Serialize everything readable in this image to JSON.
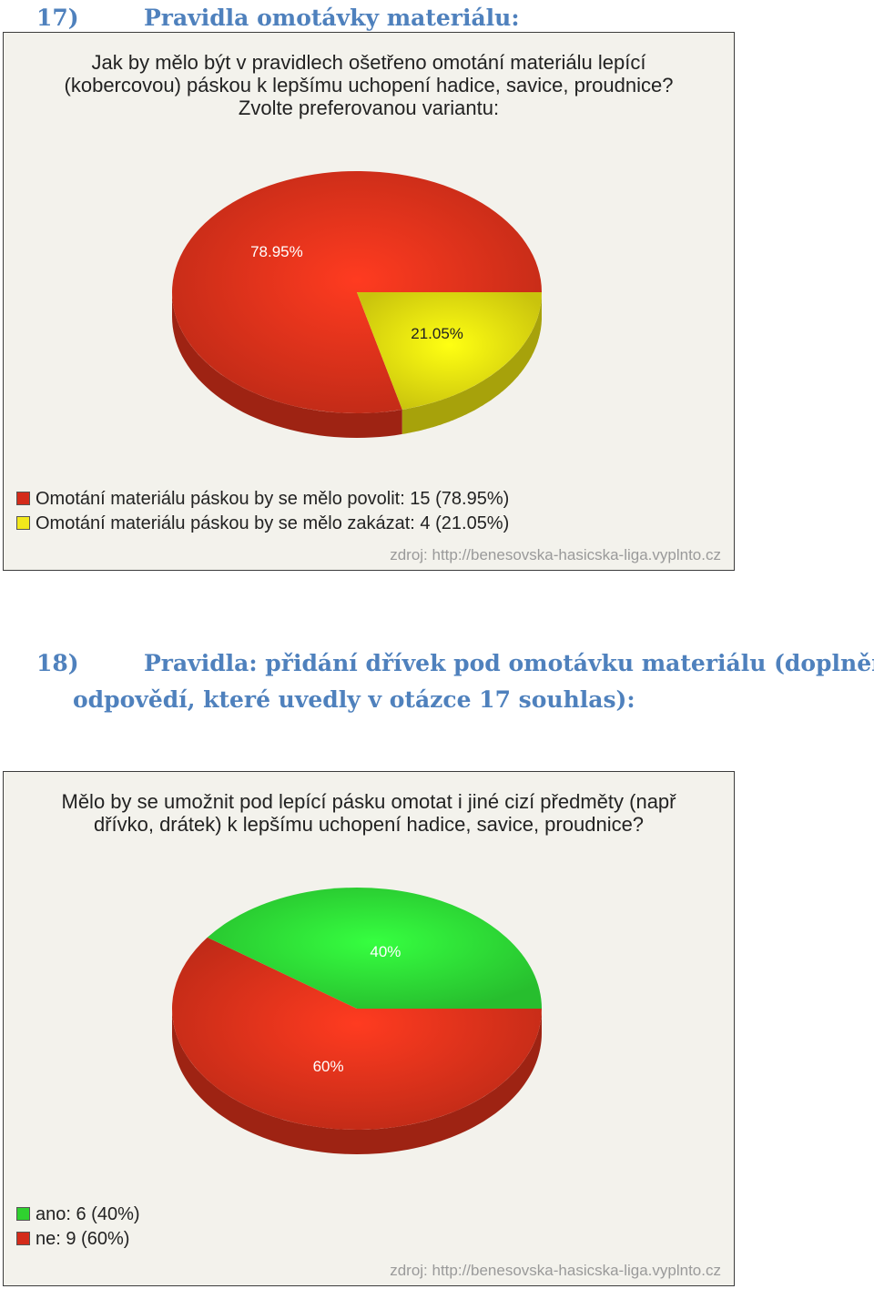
{
  "sections": [
    {
      "number": "17)",
      "title": "Pravidla omotávky materiálu:",
      "title_cont": ""
    },
    {
      "number": "18)",
      "title": "Pravidla: přidání dřívek pod omotávku materiálu (doplnění",
      "title_cont": "odpovědí, které uvedly v otázce 17 souhlas):"
    }
  ],
  "chart_data": [
    {
      "type": "pie",
      "title": "Jak by mělo být v pravidlech ošetřeno omotání materiálu lepící\n(kobercovou) páskou k lepšímu uchopení hadice, savice, proudnice?\nZvolte preferovanou variantu:",
      "slices": [
        {
          "label": "Omotání materiálu páskou by se mělo povolit",
          "value": 15,
          "percent": "78.95%",
          "color": "#e8331c"
        },
        {
          "label": "Omotání materiálu páskou by se mělo zakázat",
          "value": 4,
          "percent": "21.05%",
          "color": "#f5ee10"
        }
      ],
      "legend_entries": [
        "Omotání materiálu páskou by se mělo povolit: 15 (78.95%)",
        "Omotání materiálu páskou by se mělo zakázat: 4 (21.05%)"
      ],
      "legend_colors": [
        "#d42b1a",
        "#f2e81b"
      ],
      "legend_position": "bottom-left",
      "source": "zdroj: http://benesovska-hasicska-liga.vyplnto.cz"
    },
    {
      "type": "pie",
      "title": "Mělo by se umožnit pod lepící pásku omotat i jiné cizí předměty (např\ndřívko, drátek) k lepšímu uchopení hadice, savice, proudnice?",
      "slices": [
        {
          "label": "ne",
          "value": 9,
          "percent": "60%",
          "color": "#e8331c"
        },
        {
          "label": "ano",
          "value": 6,
          "percent": "40%",
          "color": "#2fe838"
        }
      ],
      "legend_entries": [
        "ano: 6 (40%)",
        "ne: 9 (60%)"
      ],
      "legend_colors": [
        "#2fd12f",
        "#d42b1a"
      ],
      "legend_position": "bottom-left",
      "source": "zdroj: http://benesovska-hasicska-liga.vyplnto.cz"
    }
  ]
}
